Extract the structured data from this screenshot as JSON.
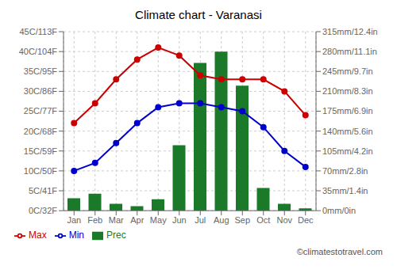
{
  "chart_data": {
    "type": "bar",
    "title": "Climate chart - Varanasi",
    "categories": [
      "Jan",
      "Feb",
      "Mar",
      "Apr",
      "May",
      "Jun",
      "Jul",
      "Aug",
      "Sep",
      "Oct",
      "Nov",
      "Dec"
    ],
    "series": [
      {
        "name": "Prec",
        "type": "bar",
        "color": "#1a7a2a",
        "axis": "y2",
        "values": [
          22,
          30,
          12,
          8,
          20,
          115,
          260,
          280,
          220,
          40,
          12,
          4
        ]
      },
      {
        "name": "Min",
        "type": "line",
        "color": "#0000cc",
        "marker": "circle",
        "values": [
          10,
          12,
          17,
          22,
          26,
          27,
          27,
          26,
          25,
          21,
          15,
          11
        ]
      },
      {
        "name": "Max",
        "type": "line",
        "color": "#cc0000",
        "marker": "circle",
        "values": [
          22,
          27,
          33,
          38,
          41,
          39,
          34,
          33,
          33,
          33,
          30,
          24
        ]
      }
    ],
    "ylim": [
      0,
      45
    ],
    "yticks": [
      {
        "value": 0,
        "label": "0C/32F"
      },
      {
        "value": 5,
        "label": "5C/41F"
      },
      {
        "value": 10,
        "label": "10C/50F"
      },
      {
        "value": 15,
        "label": "15C/59F"
      },
      {
        "value": 20,
        "label": "20C/68F"
      },
      {
        "value": 25,
        "label": "25C/77F"
      },
      {
        "value": 30,
        "label": "30C/86F"
      },
      {
        "value": 35,
        "label": "35C/95F"
      },
      {
        "value": 40,
        "label": "40C/104F"
      },
      {
        "value": 45,
        "label": "45C/113F"
      }
    ],
    "y2lim": [
      0,
      315
    ],
    "y2ticks": [
      {
        "value": 0,
        "label": "0mm/0in"
      },
      {
        "value": 35,
        "label": "35mm/1.4in"
      },
      {
        "value": 70,
        "label": "70mm/2.8in"
      },
      {
        "value": 105,
        "label": "105mm/4.2in"
      },
      {
        "value": 140,
        "label": "140mm/5.6in"
      },
      {
        "value": 175,
        "label": "175mm/6.9in"
      },
      {
        "value": 210,
        "label": "210mm/8.3in"
      },
      {
        "value": 245,
        "label": "245mm/9.7in"
      },
      {
        "value": 280,
        "label": "280mm/11.1in"
      },
      {
        "value": 315,
        "label": "315mm/12.4in"
      }
    ],
    "grid": true,
    "legend": "lower left",
    "annotations": [
      "©climatestotravel.com"
    ]
  }
}
